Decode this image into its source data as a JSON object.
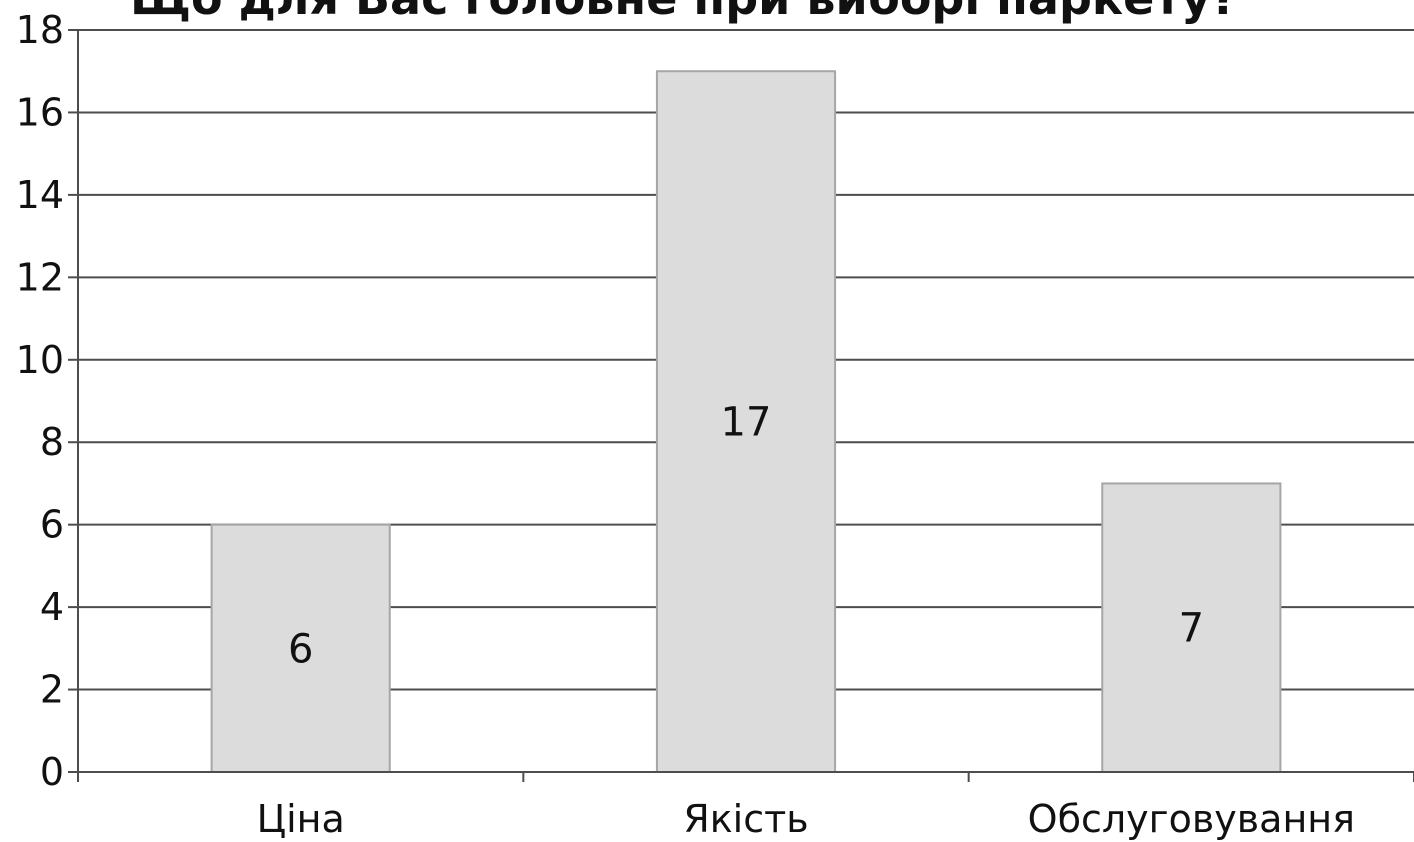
{
  "chart_data": {
    "type": "bar",
    "title": "Що для Вас головне при виборі паркету?",
    "categories": [
      "Ціна",
      "Якість",
      "Обслуговування"
    ],
    "values": [
      6,
      17,
      7
    ],
    "data_labels": [
      "6",
      "17",
      "7"
    ],
    "xlabel": "",
    "ylabel": "",
    "ylim": [
      0,
      18
    ],
    "yticks": [
      "0",
      "2",
      "4",
      "6",
      "8",
      "10",
      "12",
      "14",
      "16",
      "18"
    ],
    "grid": true,
    "legend": "none",
    "colors": {
      "bar_fill": "#dcdcdc",
      "bar_stroke": "#a6a6a6",
      "gridline": "#4d4d4d",
      "axis": "#4d4d4d"
    }
  }
}
